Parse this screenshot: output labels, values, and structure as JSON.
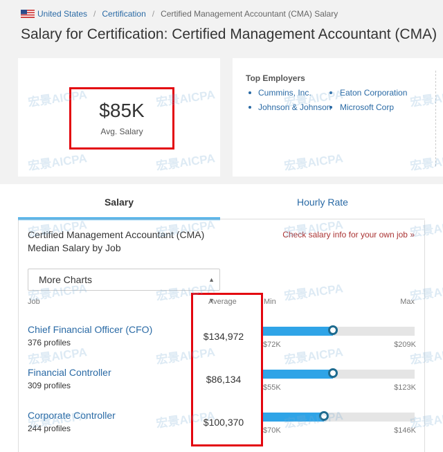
{
  "breadcrumb": {
    "country": "United States",
    "category": "Certification",
    "current": "Certified Management Accountant (CMA) Salary"
  },
  "page_title": "Salary for Certification: Certified Management Accountant (CMA)",
  "summary": {
    "avg_value": "$85K",
    "avg_label": "Avg. Salary"
  },
  "employers": {
    "title": "Top Employers",
    "items": [
      "Cummins, Inc.",
      "Eaton Corporation",
      "Johnson & Johnson",
      "Microsoft Corp"
    ]
  },
  "tabs": [
    {
      "label": "Salary",
      "active": true
    },
    {
      "label": "Hourly Rate",
      "active": false
    }
  ],
  "chart": {
    "title": "Certified Management Accountant (CMA) Median Salary by Job",
    "check_link": "Check salary info for your own job »",
    "select_value": "More Charts",
    "columns": {
      "job": "Job",
      "average": "Average",
      "min": "Min",
      "max": "Max"
    },
    "rows": [
      {
        "job": "Chief Financial Officer (CFO)",
        "profiles": "376 profiles",
        "average": "$134,972",
        "min": "$72K",
        "max": "$209K",
        "median_fraction": 0.46
      },
      {
        "job": "Financial Controller",
        "profiles": "309 profiles",
        "average": "$86,134",
        "min": "$55K",
        "max": "$123K",
        "median_fraction": 0.46
      },
      {
        "job": "Corporate Controller",
        "profiles": "244 profiles",
        "average": "$100,370",
        "min": "$70K",
        "max": "$146K",
        "median_fraction": 0.4
      }
    ]
  },
  "watermark": "宏景AICPA",
  "colors": {
    "accent": "#2fa4e7",
    "link": "#2a6aa5",
    "highlight": "#e3060f"
  }
}
